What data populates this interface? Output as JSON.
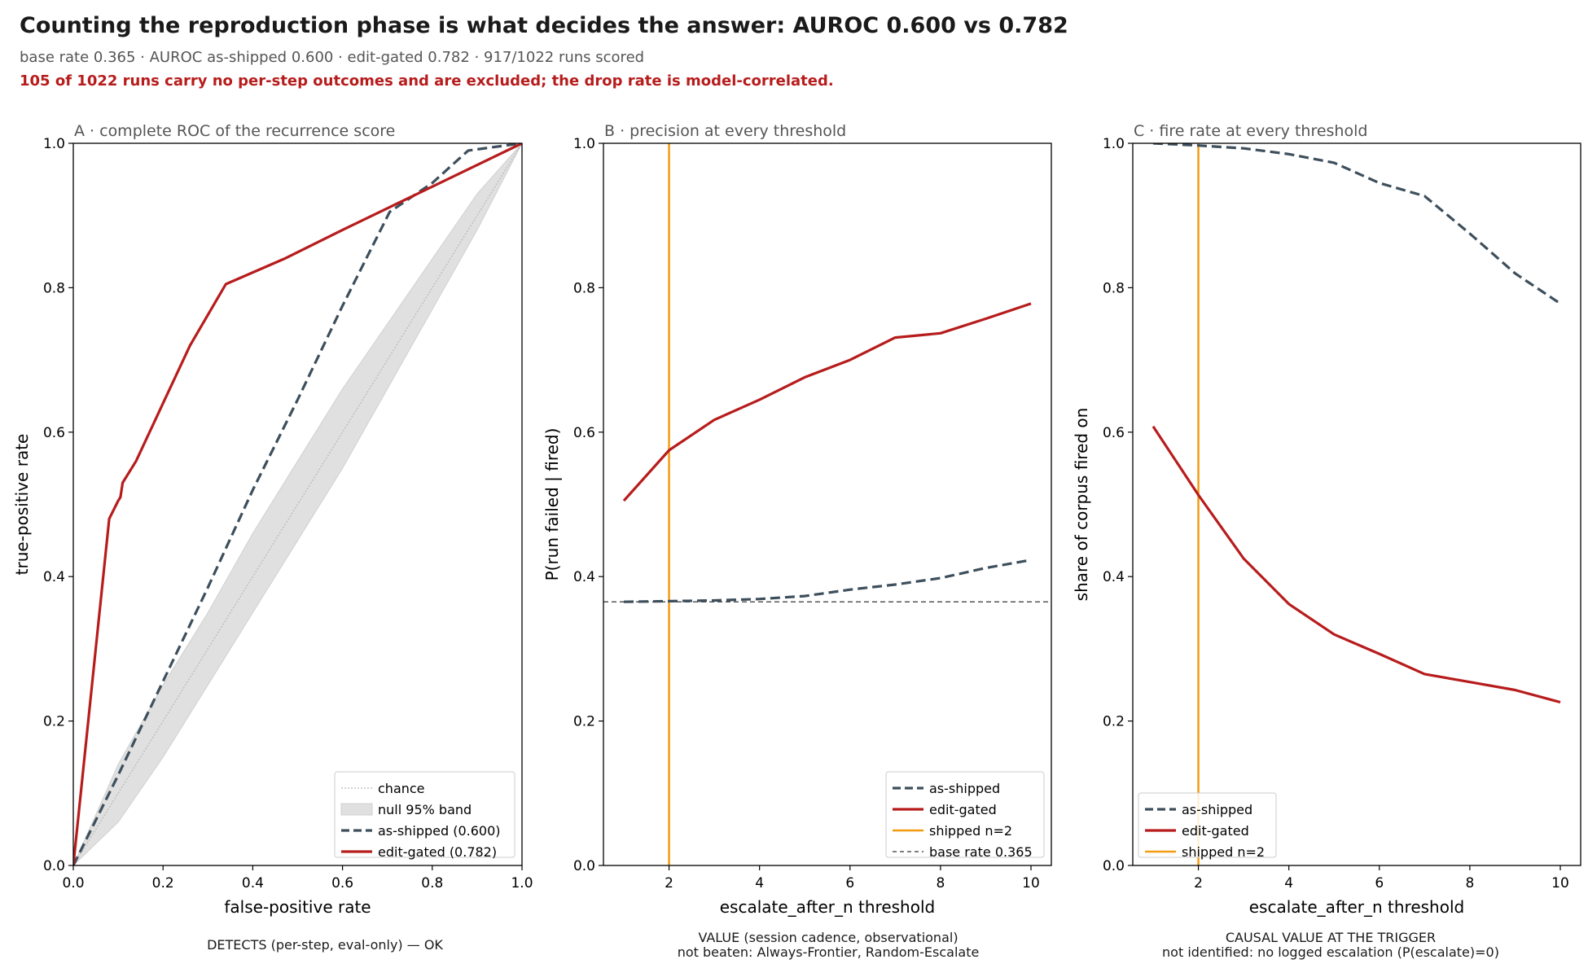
{
  "header": {
    "title": "Counting the reproduction phase is what decides the answer: AUROC 0.600 vs 0.782",
    "subtitle": "base rate 0.365 · AUROC as-shipped 0.600 · edit-gated 0.782 · 917/1022 runs scored",
    "warning": "105 of 1022 runs carry no per-step outcomes and are excluded; the drop rate is model-correlated."
  },
  "colors": {
    "as_shipped": "#3d4f5c",
    "edit_gated": "#b71c1c",
    "shipped_line": "#f39c12",
    "base_rate": "#555555",
    "null_band": "#e0e0e0",
    "chance": "#bbbbbb",
    "warning": "#b71c1c"
  },
  "chart_data": [
    {
      "type": "line",
      "title": "A · complete ROC of the recurrence score",
      "xlabel": "false-positive rate",
      "ylabel": "true-positive rate",
      "xlim": [
        0,
        1
      ],
      "ylim": [
        0,
        1
      ],
      "xticks": [
        "0.0",
        "0.2",
        "0.4",
        "0.6",
        "0.8",
        "1.0"
      ],
      "yticks": [
        "0.0",
        "0.2",
        "0.4",
        "0.6",
        "0.8",
        "1.0"
      ],
      "grid": false,
      "legend_position": "lower-right",
      "legend": [
        "chance",
        "null 95% band",
        "as-shipped (0.600)",
        "edit-gated (0.782)"
      ],
      "chance": {
        "x": [
          0,
          1
        ],
        "y": [
          0,
          1
        ]
      },
      "null_band": {
        "x": [
          0,
          0.1,
          0.2,
          0.3,
          0.4,
          0.5,
          0.6,
          0.7,
          0.8,
          0.9,
          1
        ],
        "lower": [
          0,
          0.06,
          0.15,
          0.25,
          0.35,
          0.45,
          0.55,
          0.66,
          0.77,
          0.88,
          1
        ],
        "upper": [
          0,
          0.14,
          0.25,
          0.35,
          0.46,
          0.56,
          0.66,
          0.75,
          0.84,
          0.93,
          1
        ]
      },
      "series": [
        {
          "name": "as-shipped (0.600)",
          "x": [
            0,
            0.1,
            0.2,
            0.3,
            0.4,
            0.5,
            0.6,
            0.705,
            0.8,
            0.88,
            1
          ],
          "y": [
            0,
            0.125,
            0.255,
            0.385,
            0.52,
            0.645,
            0.775,
            0.905,
            0.945,
            0.99,
            1
          ]
        },
        {
          "name": "edit-gated (0.782)",
          "x": [
            0,
            0.08,
            0.1,
            0.105,
            0.11,
            0.14,
            0.2,
            0.26,
            0.34,
            0.47,
            0.6,
            0.75,
            1
          ],
          "y": [
            0,
            0.48,
            0.505,
            0.51,
            0.53,
            0.56,
            0.64,
            0.72,
            0.805,
            0.84,
            0.88,
            0.925,
            1
          ]
        }
      ]
    },
    {
      "type": "line",
      "title": "B · precision at every threshold",
      "xlabel": "escalate_after_n threshold",
      "ylabel": "P(run failed | fired)",
      "xlim": [
        0.55,
        10.45
      ],
      "ylim": [
        0,
        1
      ],
      "xticks": [
        "2",
        "4",
        "6",
        "8",
        "10"
      ],
      "yticks": [
        "0.0",
        "0.2",
        "0.4",
        "0.6",
        "0.8",
        "1.0"
      ],
      "grid": false,
      "legend_position": "lower-right",
      "legend": [
        "as-shipped",
        "edit-gated",
        "shipped n=2",
        "base rate 0.365"
      ],
      "shipped_n": 2,
      "base_rate": 0.365,
      "series": [
        {
          "name": "as-shipped",
          "x": [
            1,
            2,
            3,
            4,
            5,
            6,
            7,
            8,
            9,
            10
          ],
          "y": [
            0.365,
            0.366,
            0.367,
            0.369,
            0.373,
            0.382,
            0.389,
            0.398,
            0.412,
            0.423
          ]
        },
        {
          "name": "edit-gated",
          "x": [
            1,
            2,
            3,
            4,
            5,
            6,
            7,
            8,
            9,
            10
          ],
          "y": [
            0.505,
            0.575,
            0.617,
            0.645,
            0.676,
            0.7,
            0.731,
            0.737,
            0.757,
            0.778
          ]
        }
      ]
    },
    {
      "type": "line",
      "title": "C · fire rate at every threshold",
      "xlabel": "escalate_after_n threshold",
      "ylabel": "share of corpus fired on",
      "xlim": [
        0.55,
        10.45
      ],
      "ylim": [
        0,
        1
      ],
      "xticks": [
        "2",
        "4",
        "6",
        "8",
        "10"
      ],
      "yticks": [
        "0.0",
        "0.2",
        "0.4",
        "0.6",
        "0.8",
        "1.0"
      ],
      "grid": false,
      "legend_position": "lower-left",
      "legend": [
        "as-shipped",
        "edit-gated",
        "shipped n=2"
      ],
      "shipped_n": 2,
      "series": [
        {
          "name": "as-shipped",
          "x": [
            1,
            2,
            3,
            4,
            5,
            6,
            7,
            8,
            9,
            10
          ],
          "y": [
            1.0,
            0.997,
            0.993,
            0.985,
            0.973,
            0.945,
            0.927,
            0.875,
            0.82,
            0.778
          ]
        },
        {
          "name": "edit-gated",
          "x": [
            1,
            2,
            3,
            4,
            5,
            6,
            7,
            8,
            9,
            10
          ],
          "y": [
            0.608,
            0.513,
            0.425,
            0.362,
            0.32,
            0.293,
            0.265,
            0.254,
            0.243,
            0.226
          ]
        }
      ]
    }
  ],
  "verdicts": [
    {
      "status": "ok",
      "lines": [
        "DETECTS (per-step, eval-only) — OK"
      ]
    },
    {
      "status": "bad",
      "lines": [
        "VALUE (session cadence, observational)",
        "not beaten: Always-Frontier, Random-Escalate"
      ]
    },
    {
      "status": "bad",
      "lines": [
        "CAUSAL VALUE AT THE TRIGGER",
        "not identified: no logged escalation (P(escalate)=0)"
      ]
    }
  ]
}
